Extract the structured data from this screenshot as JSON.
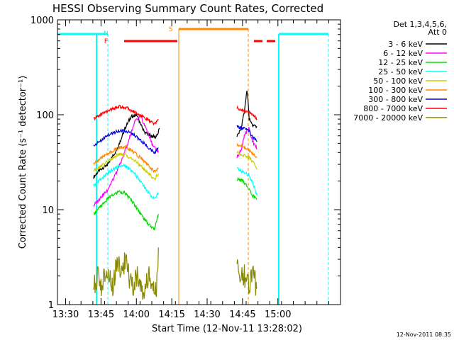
{
  "chart_data": {
    "type": "line",
    "title": "HESSI Observing Summary Count Rates, Corrected",
    "xlabel": "Start Time (12-Nov-11 13:28:02)",
    "ylabel": "Corrected Count Rate (s⁻¹ detector⁻¹)",
    "x_tick_labels": [
      "13:30",
      "13:45",
      "14:00",
      "14:15",
      "14:30",
      "14:45",
      "15:00"
    ],
    "x_ticks_min": [
      1890,
      2790,
      3690,
      4590,
      5490,
      6390,
      7290
    ],
    "xlim_min": [
      1682,
      8882
    ],
    "y_scale": "log",
    "ylim": [
      1,
      1000
    ],
    "y_tick_labels": [
      "1",
      "10",
      "100",
      "1000"
    ],
    "y_ticks": [
      1,
      10,
      100,
      1000
    ],
    "legend_title": [
      "Det 1,3,4,5,6,",
      "Att 0"
    ],
    "legend_position": "right",
    "timestamp": "12-Nov-2011 08:35",
    "series": [
      {
        "name": "3 - 6 keV",
        "color": "#000000",
        "segments": [
          {
            "x": [
              2600,
              2750,
              2950,
              3150,
              3300,
              3400,
              3550,
              3700,
              3800,
              3900,
              4050,
              4200,
              4280
            ],
            "y": [
              22,
              26,
              30,
              40,
              55,
              72,
              95,
              100,
              78,
              65,
              60,
              58,
              72
            ]
          },
          {
            "x": [
              6250,
              6350,
              6430,
              6470,
              6500,
              6530,
              6560,
              6650,
              6760
            ],
            "y": [
              60,
              70,
              105,
              140,
              180,
              140,
              90,
              78,
              75
            ]
          }
        ]
      },
      {
        "name": "6 - 12 keV",
        "color": "#ff00ff",
        "segments": [
          {
            "x": [
              2600,
              2750,
              2950,
              3150,
              3350,
              3500,
              3650,
              3800,
              3950,
              4100,
              4250
            ],
            "y": [
              11,
              13,
              16,
              23,
              36,
              55,
              85,
              95,
              70,
              48,
              40
            ]
          },
          {
            "x": [
              6250,
              6350,
              6450,
              6550,
              6650,
              6760
            ],
            "y": [
              36,
              42,
              62,
              72,
              52,
              44
            ]
          }
        ]
      },
      {
        "name": "12 - 25 keV",
        "color": "#00dd00",
        "segments": [
          {
            "x": [
              2600,
              2800,
              3000,
              3250,
              3400,
              3600,
              3800,
              4000,
              4150,
              4250
            ],
            "y": [
              9,
              11,
              13.5,
              15.5,
              15,
              12,
              9,
              7,
              6.2,
              9
            ]
          },
          {
            "x": [
              6250,
              6400,
              6550,
              6650,
              6760
            ],
            "y": [
              21,
              20,
              17,
              14,
              13
            ]
          }
        ]
      },
      {
        "name": "25 - 50 keV",
        "color": "#00ffff",
        "segments": [
          {
            "x": [
              2600,
              2800,
              3000,
              3250,
              3400,
              3600,
              3800,
              4000,
              4150,
              4250
            ],
            "y": [
              18,
              21,
              25,
              29,
              29,
              25,
              20,
              15,
              13,
              15
            ]
          },
          {
            "x": [
              6250,
              6400,
              6550,
              6650,
              6760
            ],
            "y": [
              27,
              25,
              23,
              19,
              14
            ]
          }
        ]
      },
      {
        "name": "50 - 100 keV",
        "color": "#cccc00",
        "segments": [
          {
            "x": [
              2600,
              2800,
              3000,
              3250,
              3400,
              3600,
              3800,
              4000,
              4150,
              4250
            ],
            "y": [
              26,
              29,
              33,
              38,
              38,
              34,
              29,
              24,
              21,
              24
            ]
          },
          {
            "x": [
              6250,
              6400,
              6550,
              6650,
              6760
            ],
            "y": [
              40,
              38,
              36,
              32,
              27
            ]
          }
        ]
      },
      {
        "name": "100 - 300 keV",
        "color": "#ff8800",
        "segments": [
          {
            "x": [
              2600,
              2800,
              3000,
              3250,
              3400,
              3600,
              3800,
              4000,
              4150,
              4250
            ],
            "y": [
              31,
              35,
              40,
              45,
              46,
              41,
              35,
              29,
              25,
              27
            ]
          },
          {
            "x": [
              6250,
              6400,
              6550,
              6650,
              6760
            ],
            "y": [
              48,
              46,
              43,
              39,
              36
            ]
          }
        ]
      },
      {
        "name": "300 - 800 keV",
        "color": "#0000dd",
        "segments": [
          {
            "x": [
              2600,
              2800,
              3000,
              3250,
              3400,
              3600,
              3800,
              4000,
              4150,
              4250
            ],
            "y": [
              47,
              54,
              62,
              68,
              68,
              62,
              54,
              45,
              40,
              45
            ]
          },
          {
            "x": [
              6250,
              6400,
              6550,
              6650,
              6760
            ],
            "y": [
              75,
              72,
              68,
              58,
              52
            ]
          }
        ]
      },
      {
        "name": "800 - 7000 keV",
        "color": "#ff0000",
        "segments": [
          {
            "x": [
              2600,
              2800,
              3000,
              3250,
              3400,
              3600,
              3800,
              4000,
              4150,
              4250
            ],
            "y": [
              90,
              102,
              112,
              122,
              120,
              110,
              98,
              88,
              80,
              90
            ]
          },
          {
            "x": [
              6250,
              6400,
              6550,
              6650,
              6760
            ],
            "y": [
              118,
              112,
              105,
              100,
              90
            ]
          }
        ]
      },
      {
        "name": "7000 - 20000 keV",
        "color": "#888800",
        "segments": [
          {
            "x": [
              2600,
              2700,
              2800,
              2900,
              3000,
              3100,
              3200,
              3300,
              3400,
              3500,
              3600,
              3700,
              3800,
              3900,
              4000,
              4100,
              4200,
              4250
            ],
            "y": [
              1.5,
              2,
              1.5,
              2,
              2,
              1.5,
              3,
              2,
              3,
              2,
              1.5,
              2,
              1.5,
              1.5,
              2,
              1.5,
              1.5,
              4
            ]
          },
          {
            "x": [
              6250,
              6350,
              6450,
              6550,
              6650,
              6760
            ],
            "y": [
              3,
              2,
              2,
              1.5,
              2,
              1.5
            ]
          }
        ]
      }
    ],
    "flags": [
      {
        "label": "N",
        "color": "#00ffff",
        "x": 2917
      },
      {
        "label": "F",
        "color": "#ff0000",
        "x": 2917
      },
      {
        "label": "S",
        "color": "#ff8800",
        "x": 4563
      }
    ]
  }
}
